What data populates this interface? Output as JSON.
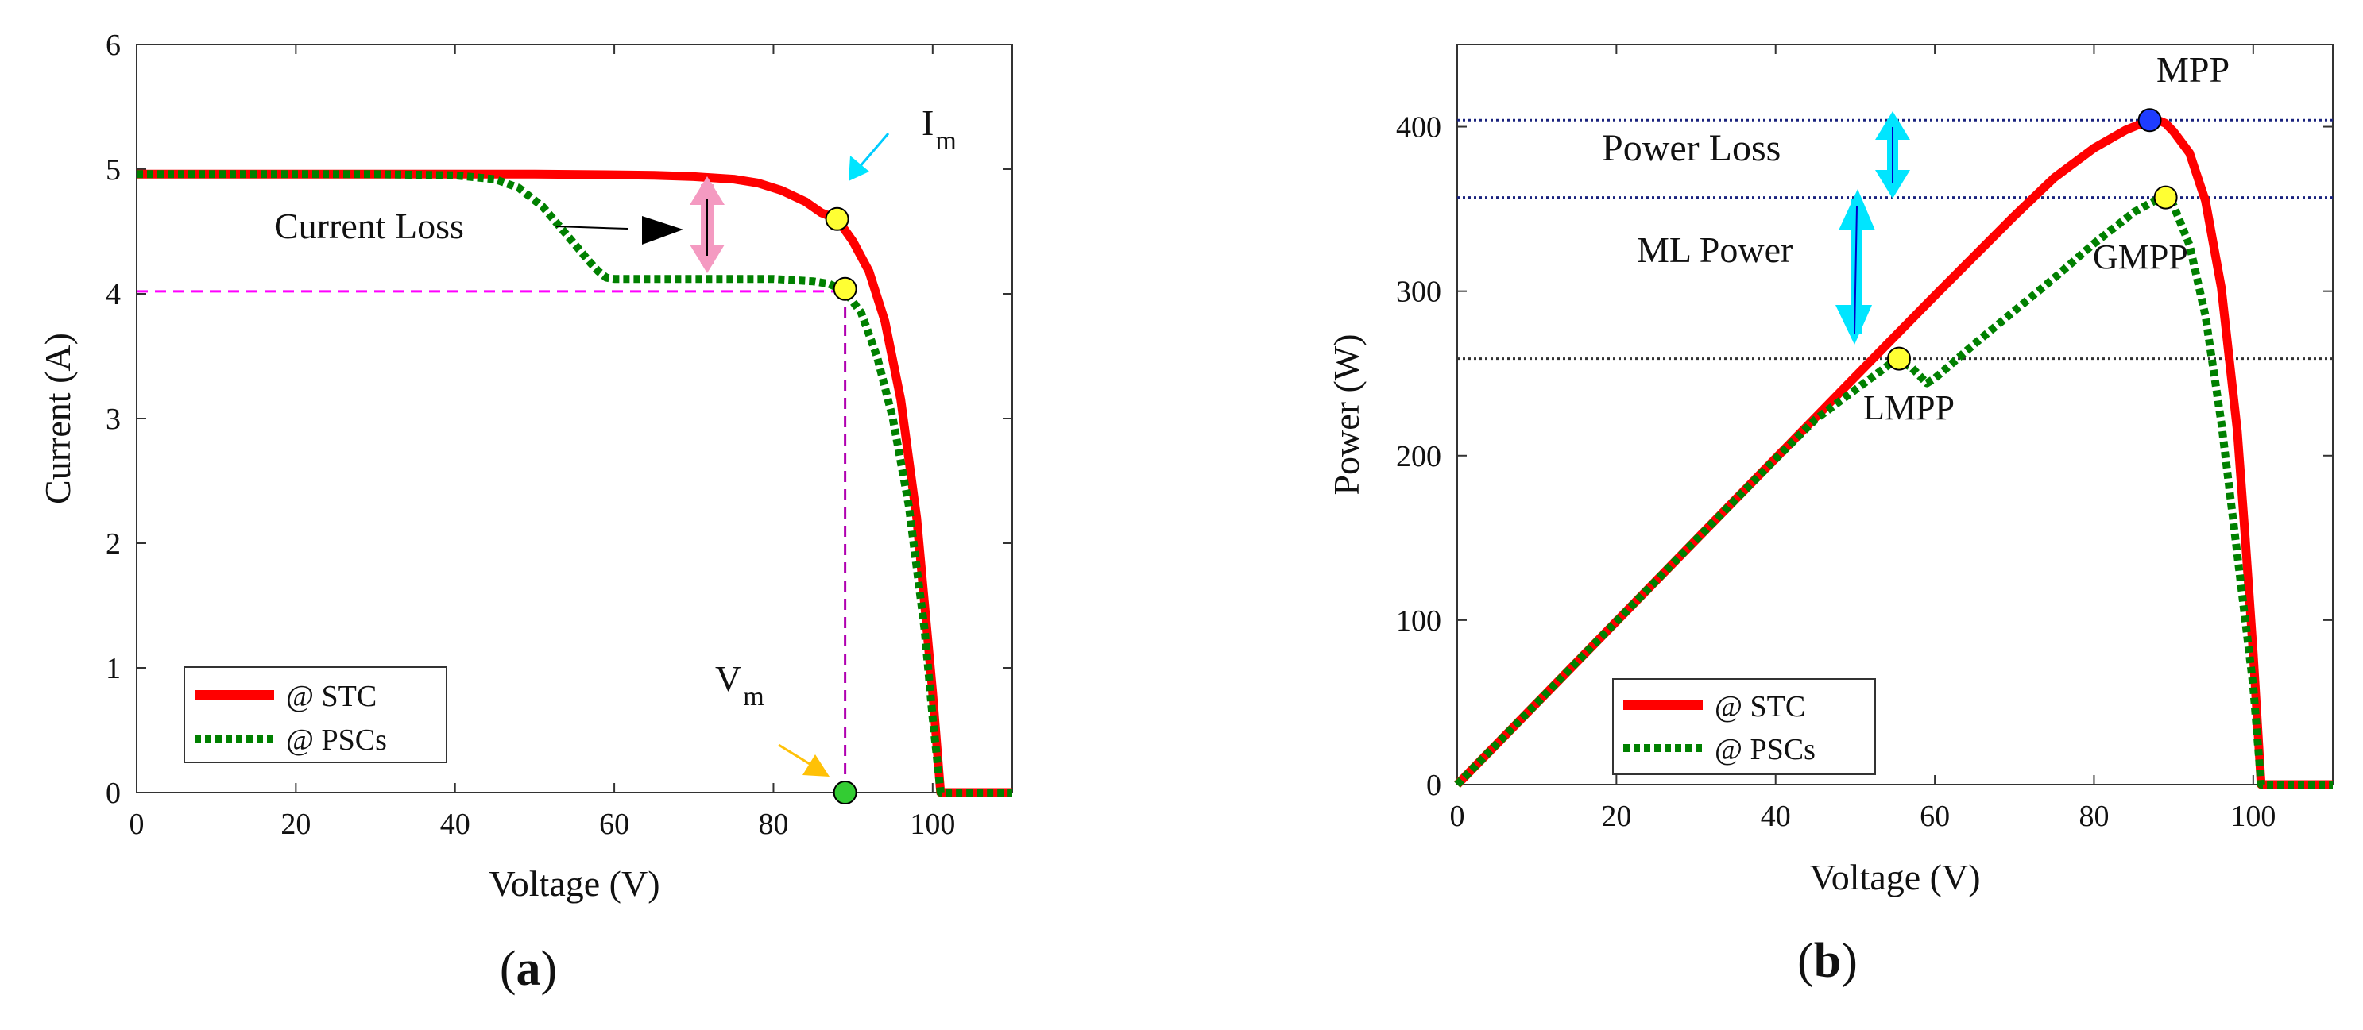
{
  "chart_data": [
    {
      "type": "line",
      "panel_label": "(a)",
      "panel_letter": "a",
      "xlabel": "Voltage (V)",
      "ylabel": "Current (A)",
      "xlim": [
        0,
        110
      ],
      "ylim": [
        0,
        6
      ],
      "xticks": [
        0,
        20,
        40,
        60,
        80,
        100
      ],
      "yticks": [
        0,
        1,
        2,
        3,
        4,
        5,
        6
      ],
      "grid": false,
      "legend_position": "bottom-left",
      "series": [
        {
          "name": "@ STC",
          "color": "#ff0000",
          "style": "solid",
          "points": [
            [
              0,
              4.96
            ],
            [
              10,
              4.96
            ],
            [
              20,
              4.96
            ],
            [
              30,
              4.96
            ],
            [
              40,
              4.96
            ],
            [
              50,
              4.96
            ],
            [
              60,
              4.955
            ],
            [
              65,
              4.95
            ],
            [
              70,
              4.94
            ],
            [
              75,
              4.92
            ],
            [
              78,
              4.89
            ],
            [
              81,
              4.83
            ],
            [
              84,
              4.74
            ],
            [
              86,
              4.65
            ],
            [
              88,
              4.6
            ],
            [
              90,
              4.42
            ],
            [
              92,
              4.18
            ],
            [
              94,
              3.78
            ],
            [
              96,
              3.15
            ],
            [
              98,
              2.2
            ],
            [
              99,
              1.5
            ],
            [
              100,
              0.8
            ],
            [
              101,
              0.0
            ],
            [
              110,
              0.0
            ]
          ]
        },
        {
          "name": "@ PSCs",
          "color": "#008000",
          "style": "dotted",
          "points": [
            [
              0,
              4.96
            ],
            [
              10,
              4.96
            ],
            [
              20,
              4.96
            ],
            [
              30,
              4.96
            ],
            [
              40,
              4.95
            ],
            [
              45,
              4.92
            ],
            [
              48,
              4.85
            ],
            [
              51,
              4.7
            ],
            [
              53,
              4.55
            ],
            [
              55,
              4.4
            ],
            [
              57,
              4.25
            ],
            [
              58,
              4.18
            ],
            [
              59,
              4.13
            ],
            [
              60,
              4.12
            ],
            [
              70,
              4.12
            ],
            [
              80,
              4.12
            ],
            [
              85,
              4.1
            ],
            [
              87,
              4.08
            ],
            [
              89,
              4.02
            ],
            [
              91,
              3.85
            ],
            [
              93,
              3.5
            ],
            [
              95,
              3.0
            ],
            [
              97,
              2.3
            ],
            [
              99,
              1.3
            ],
            [
              100,
              0.6
            ],
            [
              101,
              0.0
            ],
            [
              110,
              0.0
            ]
          ]
        }
      ],
      "markers": [
        {
          "name": "Im point",
          "x": 88,
          "y": 4.6,
          "color": "#ffff33"
        },
        {
          "name": "PSC point",
          "x": 89,
          "y": 4.04,
          "color": "#ffff33"
        },
        {
          "name": "Vm point",
          "x": 89,
          "y": 0,
          "color": "#33cc33"
        }
      ],
      "reference_lines": [
        {
          "kind": "horizontal",
          "y": 4.02,
          "from_x": 0,
          "to_x": 89,
          "color": "#ff00ff"
        },
        {
          "kind": "vertical",
          "x": 89,
          "from_y": 0,
          "to_y": 4.02,
          "color": "#b000b0"
        }
      ],
      "annotations": [
        {
          "text": "Current Loss",
          "x": 34,
          "y": 4.5,
          "color": "#9932cc"
        },
        {
          "text": "I",
          "subscript": "m",
          "x": 100,
          "y": 5.35,
          "color": "#008000"
        },
        {
          "text": "V",
          "subscript": "m",
          "x": 80,
          "y": 0.8,
          "color": "#008000"
        }
      ]
    },
    {
      "type": "line",
      "panel_label": "(b)",
      "panel_letter": "b",
      "xlabel": "Voltage (V)",
      "ylabel": "Power (W)",
      "xlim": [
        0,
        110
      ],
      "ylim": [
        0,
        450
      ],
      "xticks": [
        0,
        20,
        40,
        60,
        80,
        100
      ],
      "yticks": [
        0,
        100,
        200,
        300,
        400
      ],
      "grid": false,
      "legend_position": "bottom-left",
      "series": [
        {
          "name": "@ STC",
          "color": "#ff0000",
          "style": "solid",
          "points": [
            [
              0,
              0
            ],
            [
              10,
              49.6
            ],
            [
              20,
              99.2
            ],
            [
              30,
              148.8
            ],
            [
              40,
              198.4
            ],
            [
              50,
              248
            ],
            [
              60,
              297.3
            ],
            [
              70,
              345.8
            ],
            [
              75,
              369
            ],
            [
              80,
              387
            ],
            [
              84,
              398
            ],
            [
              86,
              402
            ],
            [
              87,
              404
            ],
            [
              88,
              404
            ],
            [
              89,
              402
            ],
            [
              90,
              397
            ],
            [
              92,
              384
            ],
            [
              94,
              355
            ],
            [
              96,
              302
            ],
            [
              98,
              215
            ],
            [
              99,
              150
            ],
            [
              100,
              80
            ],
            [
              101,
              0
            ],
            [
              110,
              0
            ]
          ]
        },
        {
          "name": "@ PSCs",
          "color": "#008000",
          "style": "dotted",
          "points": [
            [
              0,
              0
            ],
            [
              10,
              49.6
            ],
            [
              20,
              99.2
            ],
            [
              30,
              148.8
            ],
            [
              40,
              198
            ],
            [
              45,
              222
            ],
            [
              50,
              240
            ],
            [
              55,
              258
            ],
            [
              57,
              254
            ],
            [
              59,
              244
            ],
            [
              60,
              247
            ],
            [
              65,
              268
            ],
            [
              70,
              288
            ],
            [
              75,
              308
            ],
            [
              80,
              329
            ],
            [
              85,
              348
            ],
            [
              88,
              356
            ],
            [
              89,
              357
            ],
            [
              90,
              352
            ],
            [
              92,
              328
            ],
            [
              94,
              285
            ],
            [
              96,
              220
            ],
            [
              98,
              140
            ],
            [
              100,
              60
            ],
            [
              101,
              0
            ],
            [
              110,
              0
            ]
          ]
        }
      ],
      "markers": [
        {
          "name": "MPP point",
          "x": 87,
          "y": 404,
          "color": "#1e3cff"
        },
        {
          "name": "GMPP point",
          "x": 89,
          "y": 357,
          "color": "#ffff33"
        },
        {
          "name": "LMPP point",
          "x": 55.5,
          "y": 259,
          "color": "#ffff33"
        }
      ],
      "reference_lines": [
        {
          "kind": "horizontal",
          "y": 404,
          "from_x": 0,
          "to_x": 110,
          "color": "#1a237e"
        },
        {
          "kind": "horizontal",
          "y": 357,
          "from_x": 0,
          "to_x": 110,
          "color": "#1a237e"
        },
        {
          "kind": "horizontal",
          "y": 259,
          "from_x": 0,
          "to_x": 110,
          "color": "#333333"
        }
      ],
      "annotations": [
        {
          "text": "MPP",
          "x": 85,
          "y": 420,
          "color": "#ff0000"
        },
        {
          "text": "Power Loss",
          "x": 30,
          "y": 382,
          "color": "#ff0000"
        },
        {
          "text": "ML Power",
          "x": 32,
          "y": 317,
          "color": "#8b2500"
        },
        {
          "text": "GMPP",
          "x": 92,
          "y": 312,
          "color": "#008000"
        },
        {
          "text": "LMPP",
          "x": 56,
          "y": 222,
          "color": "#ff8fc0"
        }
      ]
    }
  ]
}
